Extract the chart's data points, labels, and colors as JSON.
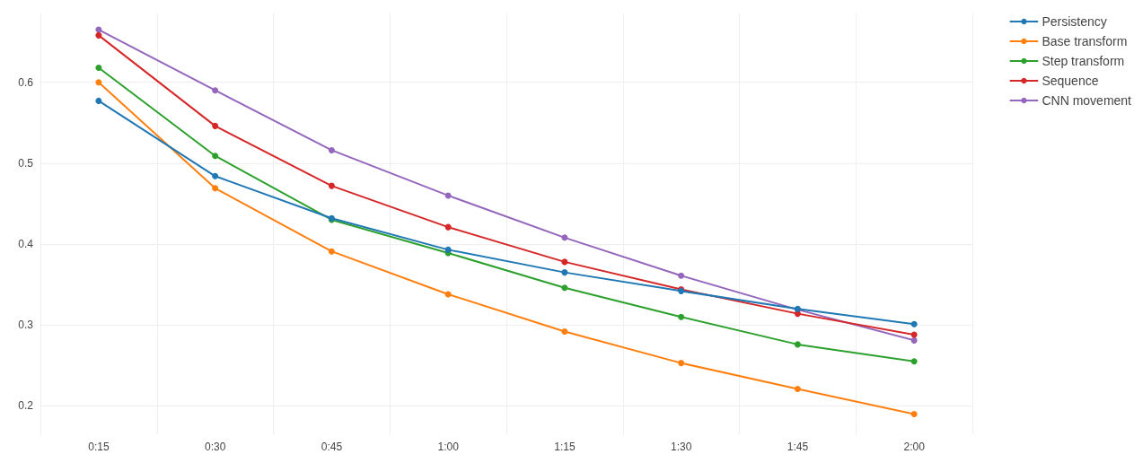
{
  "chart_data": {
    "type": "line",
    "categories": [
      "0:15",
      "0:30",
      "0:45",
      "1:00",
      "1:15",
      "1:30",
      "1:45",
      "2:00"
    ],
    "series": [
      {
        "name": "Persistency",
        "color": "#1f77b4",
        "values": [
          0.577,
          0.484,
          0.432,
          0.393,
          0.365,
          0.342,
          0.32,
          0.301
        ]
      },
      {
        "name": "Base transform",
        "color": "#ff7f0e",
        "values": [
          0.6,
          0.469,
          0.391,
          0.338,
          0.292,
          0.253,
          0.221,
          0.19
        ]
      },
      {
        "name": "Step transform",
        "color": "#2ca02c",
        "values": [
          0.618,
          0.509,
          0.43,
          0.389,
          0.346,
          0.31,
          0.276,
          0.255
        ]
      },
      {
        "name": "Sequence",
        "color": "#d62728",
        "values": [
          0.658,
          0.546,
          0.472,
          0.421,
          0.378,
          0.344,
          0.314,
          0.288
        ]
      },
      {
        "name": "CNN movement",
        "color": "#9467bd",
        "values": [
          0.665,
          0.59,
          0.516,
          0.46,
          0.408,
          0.361,
          0.319,
          0.281
        ]
      }
    ],
    "ylim": [
      0.165,
      0.685
    ],
    "yticks": [
      0.2,
      0.3,
      0.4,
      0.5,
      0.6
    ],
    "grid": true,
    "legend": "top right",
    "marker": "circle",
    "line_style": "solid"
  }
}
